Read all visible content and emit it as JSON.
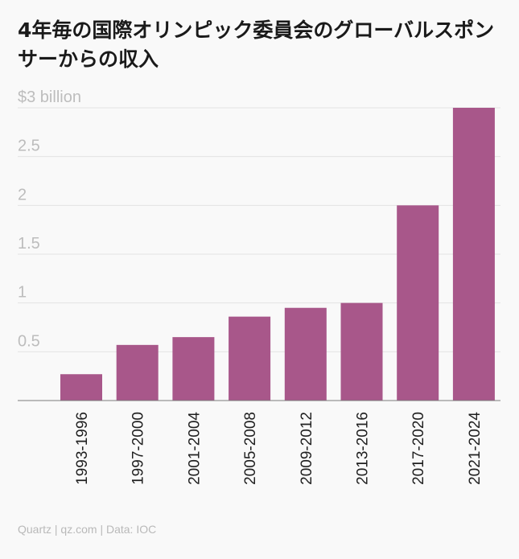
{
  "chart_data": {
    "type": "bar",
    "title": "4年毎の国際オリンピック委員会のグローバルスポンサーからの収入",
    "ylabel": "",
    "xlabel": "",
    "y_tick_labels": [
      "",
      "0.5",
      "1",
      "1.5",
      "2",
      "2.5",
      "$3 billion"
    ],
    "y_ticks": [
      0,
      0.5,
      1,
      1.5,
      2,
      2.5,
      3
    ],
    "ylim": [
      0,
      3
    ],
    "categories": [
      "1993-1996",
      "1997-2000",
      "2001-2004",
      "2005-2008",
      "2009-2012",
      "2013-2016",
      "2017-2020",
      "2021-2024"
    ],
    "values": [
      0.27,
      0.57,
      0.65,
      0.86,
      0.95,
      1.0,
      2.0,
      3.0
    ],
    "bar_color": "#a8578a",
    "grid": true
  },
  "footer": {
    "source": "Quartz | qz.com | Data: IOC"
  }
}
